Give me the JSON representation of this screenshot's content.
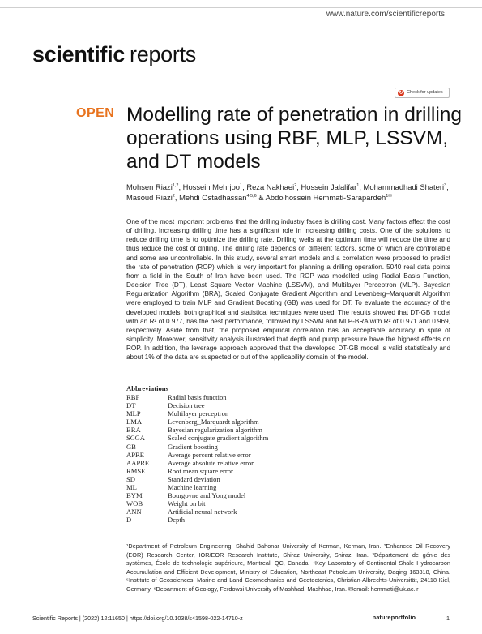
{
  "header": {
    "url": "www.nature.com/scientificreports",
    "journal_bold": "scientific",
    "journal_light": "reports",
    "check_updates": "Check for updates"
  },
  "badge": "OPEN",
  "title": "Modelling rate of penetration in drilling operations using RBF, MLP, LSSVM, and DT models",
  "authors": [
    {
      "name": "Mohsen Riazi",
      "sup": "1,2"
    },
    {
      "name": "Hossein Mehrjoo",
      "sup": "1"
    },
    {
      "name": "Reza Nakhaei",
      "sup": "2"
    },
    {
      "name": "Hossein Jalalifar",
      "sup": "1"
    },
    {
      "name": "Mohammadhadi Shateri",
      "sup": "3"
    },
    {
      "name": "Masoud Riazi",
      "sup": "2"
    },
    {
      "name": "Mehdi Ostadhassan",
      "sup": "4,5,6"
    },
    {
      "name": "Abdolhossein Hemmati-Sarapardeh",
      "sup": "1✉"
    }
  ],
  "abstract": "One of the most important problems that the drilling industry faces is drilling cost. Many factors affect the cost of drilling. Increasing drilling time has a significant role in increasing drilling costs. One of the solutions to reduce drilling time is to optimize the drilling rate. Drilling wells at the optimum time will reduce the time and thus reduce the cost of drilling. The drilling rate depends on different factors, some of which are controllable and some are uncontrollable. In this study, several smart models and a correlation were proposed to predict the rate of penetration (ROP) which is very important for planning a drilling operation. 5040 real data points from a field in the South of Iran have been used. The ROP was modelled using Radial Basis Function, Decision Tree (DT), Least Square Vector Machine (LSSVM), and Multilayer Perceptron (MLP). Bayesian Regularization Algorithm (BRA), Scaled Conjugate Gradient Algorithm and Levenberg–Marquardt Algorithm were employed to train MLP and Gradient Boosting (GB) was used for DT. To evaluate the accuracy of the developed models, both graphical and statistical techniques were used. The results showed that DT-GB model with an R² of 0.977, has the best performance, followed by LSSVM and MLP-BRA with R² of 0.971 and 0.969, respectively. Aside from that, the proposed empirical correlation has an acceptable accuracy in spite of simplicity. Moreover, sensitivity analysis illustrated that depth and pump pressure have the highest effects on ROP. In addition, the leverage approach approved that the developed DT-GB model is valid statistically and about 1% of the data are suspected or out of the applicability domain of the model.",
  "abbreviations": {
    "heading": "Abbreviations",
    "items": [
      {
        "abbr": "RBF",
        "full": "Radial basis function"
      },
      {
        "abbr": "DT",
        "full": "Decision tree"
      },
      {
        "abbr": "MLP",
        "full": "Multilayer perceptron"
      },
      {
        "abbr": "LMA",
        "full": "Levenberg_Marquardt algorithm"
      },
      {
        "abbr": "BRA",
        "full": "Bayesian regularization algorithm"
      },
      {
        "abbr": "SCGA",
        "full": "Scaled conjugate gradient algorithm"
      },
      {
        "abbr": "GB",
        "full": "Gradient boosting"
      },
      {
        "abbr": "APRE",
        "full": "Average percent relative error"
      },
      {
        "abbr": "AAPRE",
        "full": "Average absolute relative error"
      },
      {
        "abbr": "RMSE",
        "full": "Root mean square error"
      },
      {
        "abbr": "SD",
        "full": "Standard deviation"
      },
      {
        "abbr": "ML",
        "full": "Machine learning"
      },
      {
        "abbr": "BYM",
        "full": "Bourgoyne and Yong model"
      },
      {
        "abbr": "WOB",
        "full": "Weight on bit"
      },
      {
        "abbr": "ANN",
        "full": "Artificial neural network"
      },
      {
        "abbr": "D",
        "full": "Depth"
      }
    ]
  },
  "affiliations": "¹Department of Petroleum Engineering, Shahid Bahonar University of Kerman, Kerman, Iran. ²Enhanced Oil Recovery (EOR) Research Center, IOR/EOR Research Institute, Shiraz University, Shiraz, Iran. ³Département de génie des systèmes, École de technologie supérieure, Montreal, QC, Canada. ⁴Key Laboratory of Continental Shale Hydrocarbon Accumulation and Efficient Development, Ministry of Education, Northeast Petroleum University, Daqing 163318, China. ⁵Institute of Geosciences, Marine and Land Geomechanics and Geotectonics, Christian-Albrechts-Universität, 24118 Kiel, Germany. ⁶Department of Geology, Ferdowsi University of Mashhad, Mashhad, Iran. ✉email: hemmati@uk.ac.ir",
  "footer": {
    "citation": "Scientific Reports |        (2022) 12:11650        | https://doi.org/10.1038/s41598-022-14710-z",
    "publisher": "natureportfolio",
    "page": "1"
  }
}
